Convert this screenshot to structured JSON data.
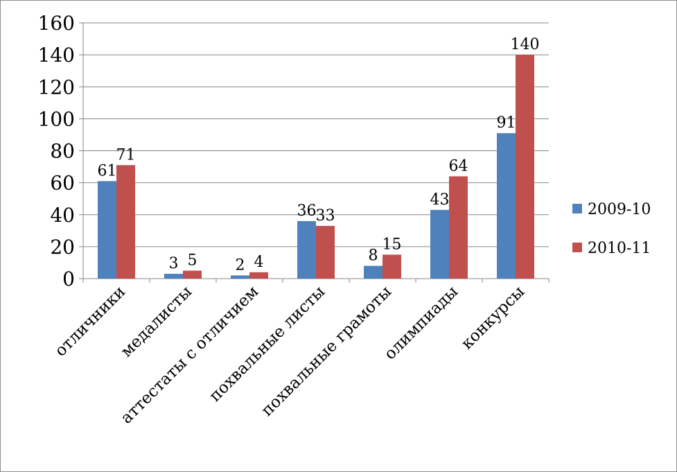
{
  "chart_data": {
    "type": "bar",
    "categories": [
      "отличники",
      "медалисты",
      "аттестаты с отличием",
      "похвальные листы",
      "похвальные грамоты",
      "олимпиады",
      "конкурсы"
    ],
    "series": [
      {
        "name": "2009-10",
        "color": "#4f81bd",
        "values": [
          61,
          3,
          2,
          36,
          8,
          43,
          91
        ]
      },
      {
        "name": "2010-11",
        "color": "#c0504d",
        "values": [
          71,
          5,
          4,
          33,
          15,
          64,
          140
        ]
      }
    ],
    "ylim": [
      0,
      160
    ],
    "yticks": [
      0,
      20,
      40,
      60,
      80,
      100,
      120,
      140,
      160
    ],
    "grid": true,
    "legend": "right",
    "title": "",
    "xlabel": "",
    "ylabel": ""
  }
}
